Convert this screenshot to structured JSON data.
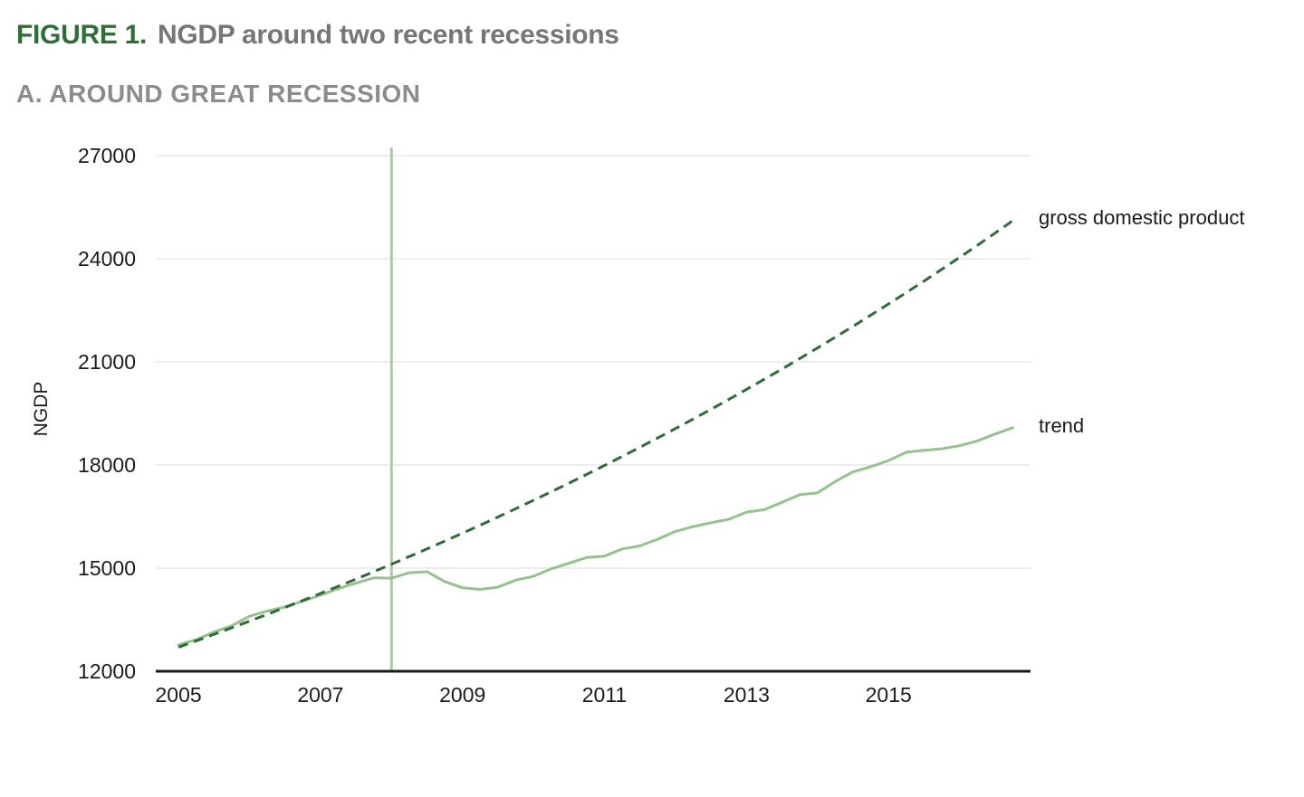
{
  "figure": {
    "label": "FIGURE 1.",
    "title": "NGDP around two recent recessions",
    "panel_title": "A. AROUND GREAT RECESSION"
  },
  "colors": {
    "figure_label": "#2e6f35",
    "figure_title": "#767676",
    "panel_title": "#8c8c8c",
    "gdp_dashed": "#2f6b3a",
    "trend_solid": "#95c28e",
    "recession_vline": "#a9cba3",
    "gridline": "#e7e7e7",
    "axis": "#1a1a1a",
    "tick_label": "#1b1b1b"
  },
  "chart_data": {
    "type": "line",
    "title": "A. AROUND GREAT RECESSION",
    "xlabel": "",
    "ylabel": "NGDP",
    "xlim": [
      2004.68,
      2017.0
    ],
    "ylim": [
      12000,
      27000
    ],
    "xticks": [
      2005,
      2007,
      2009,
      2011,
      2013,
      2015
    ],
    "yticks": [
      12000,
      15000,
      18000,
      21000,
      24000,
      27000
    ],
    "grid": "horizontal",
    "legend_position": "right-of-plot-annotations",
    "vline_x": 2008,
    "x": [
      2005,
      2005.25,
      2005.5,
      2005.75,
      2006,
      2006.25,
      2006.5,
      2006.75,
      2007,
      2007.25,
      2007.5,
      2007.75,
      2008,
      2008.25,
      2008.5,
      2008.75,
      2009,
      2009.25,
      2009.5,
      2009.75,
      2010,
      2010.25,
      2010.5,
      2010.75,
      2011,
      2011.25,
      2011.5,
      2011.75,
      2012,
      2012.25,
      2012.5,
      2012.75,
      2013,
      2013.25,
      2013.5,
      2013.75,
      2014,
      2014.25,
      2014.5,
      2014.75,
      2015,
      2015.25,
      2015.5,
      2015.75,
      2016,
      2016.25,
      2016.5,
      2016.75
    ],
    "series": [
      {
        "name": "trend",
        "style": "solid",
        "color": "#95c28e",
        "values": [
          12767,
          12922,
          13143,
          13324,
          13599,
          13753,
          13870,
          14040,
          14215,
          14402,
          14564,
          14715,
          14707,
          14866,
          14898,
          14608,
          14430,
          14381,
          14448,
          14651,
          14764,
          14980,
          15142,
          15309,
          15351,
          15558,
          15648,
          15842,
          16069,
          16207,
          16320,
          16420,
          16630,
          16699,
          16912,
          17133,
          17190,
          17520,
          17800,
          17950,
          18130,
          18370,
          18430,
          18470,
          18560,
          18700,
          18900,
          19085
        ]
      },
      {
        "name": "gross domestic product",
        "style": "dashed",
        "color": "#2f6b3a",
        "values": [
          12700,
          12885,
          13073,
          13264,
          13458,
          13655,
          13854,
          14057,
          14262,
          14470,
          14682,
          14896,
          15114,
          15335,
          15558,
          15786,
          16016,
          16250,
          16488,
          16728,
          16973,
          17220,
          17472,
          17727,
          17986,
          18249,
          18515,
          18786,
          19060,
          19339,
          19621,
          19908,
          20199,
          20494,
          20793,
          21097,
          21405,
          21718,
          22035,
          22357,
          22683,
          23015,
          23351,
          23692,
          24038,
          24389,
          24745,
          25107
        ]
      }
    ],
    "annotations": [
      {
        "text": "gross domestic product",
        "y": 25000,
        "dy": -7
      },
      {
        "text": "trend",
        "y": 19050,
        "dy": -3
      }
    ]
  }
}
